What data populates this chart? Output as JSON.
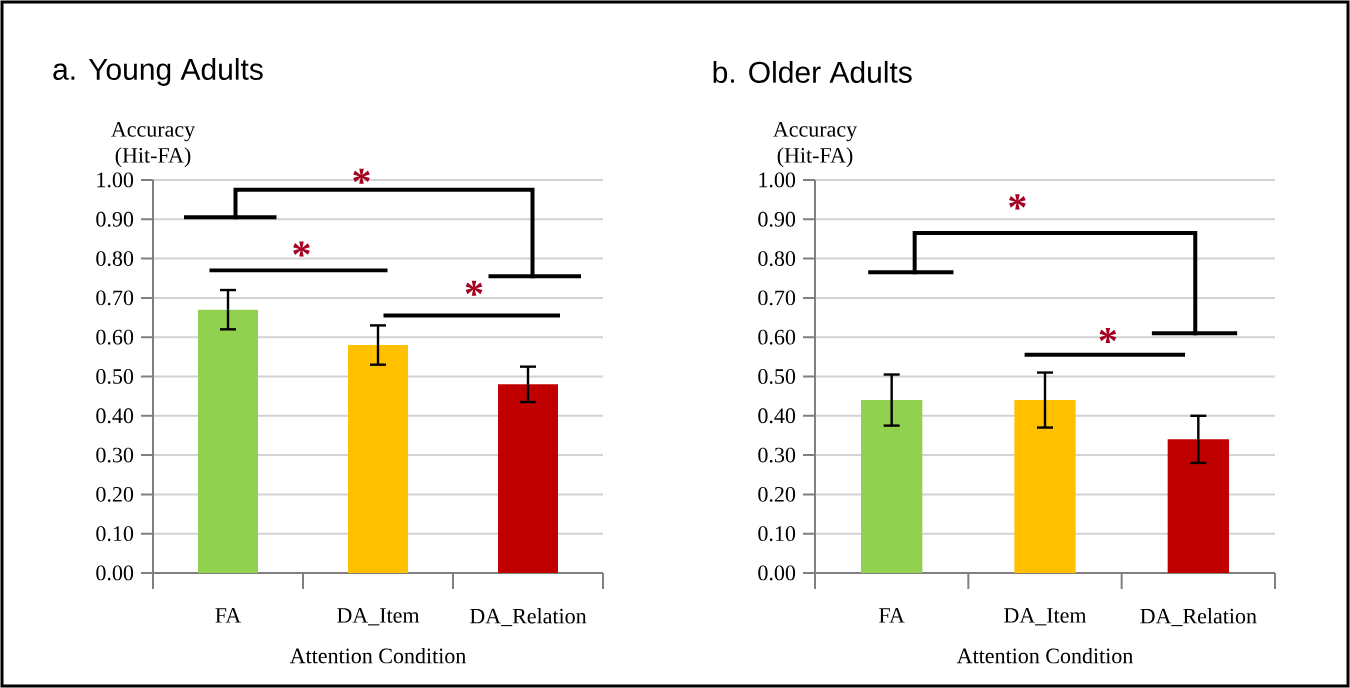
{
  "chart_data": [
    {
      "type": "bar",
      "title": "a. Young Adults",
      "ylabel": "Accuracy (Hit-FA)",
      "xlabel": "Attention Condition",
      "categories": [
        "FA",
        "DA_Item",
        "DA_Relation"
      ],
      "values": [
        0.67,
        0.58,
        0.48
      ],
      "errors": [
        0.05,
        0.05,
        0.045
      ],
      "colors": [
        "#92d050",
        "#ffc000",
        "#c00000"
      ],
      "ylim": [
        0,
        1
      ],
      "yticks": [
        {
          "value": 0,
          "label": "0.00"
        },
        {
          "value": 0.1,
          "label": "0.10"
        },
        {
          "value": 0.2,
          "label": "0.20"
        },
        {
          "value": 0.3,
          "label": "0.30"
        },
        {
          "value": 0.4,
          "label": "0.40"
        },
        {
          "value": 0.5,
          "label": "0.50"
        },
        {
          "value": 0.6,
          "label": "0.60"
        },
        {
          "value": 0.7,
          "label": "0.70"
        },
        {
          "value": 0.8,
          "label": "0.80"
        },
        {
          "value": 0.9,
          "label": "0.90"
        },
        {
          "value": 1,
          "label": "1.00"
        }
      ],
      "grid": "y",
      "annotations": [
        "*",
        "*",
        "*"
      ]
    },
    {
      "type": "bar",
      "title": "b. Older Adults",
      "ylabel": "Accuracy (Hit-FA)",
      "xlabel": "Attention Condition",
      "categories": [
        "FA",
        "DA_Item",
        "DA_Relation"
      ],
      "values": [
        0.44,
        0.44,
        0.34
      ],
      "errors": [
        0.065,
        0.07,
        0.06
      ],
      "colors": [
        "#92d050",
        "#ffc000",
        "#c00000"
      ],
      "ylim": [
        0,
        1
      ],
      "yticks": [
        {
          "value": 0,
          "label": "0.00"
        },
        {
          "value": 0.1,
          "label": "0.10"
        },
        {
          "value": 0.2,
          "label": "0.20"
        },
        {
          "value": 0.3,
          "label": "0.30"
        },
        {
          "value": 0.4,
          "label": "0.40"
        },
        {
          "value": 0.5,
          "label": "0.50"
        },
        {
          "value": 0.6,
          "label": "0.60"
        },
        {
          "value": 0.7,
          "label": "0.70"
        },
        {
          "value": 0.8,
          "label": "0.80"
        },
        {
          "value": 0.9,
          "label": "0.90"
        },
        {
          "value": 1,
          "label": "1.00"
        }
      ],
      "grid": "y",
      "annotations": [
        "*",
        "*"
      ]
    }
  ]
}
